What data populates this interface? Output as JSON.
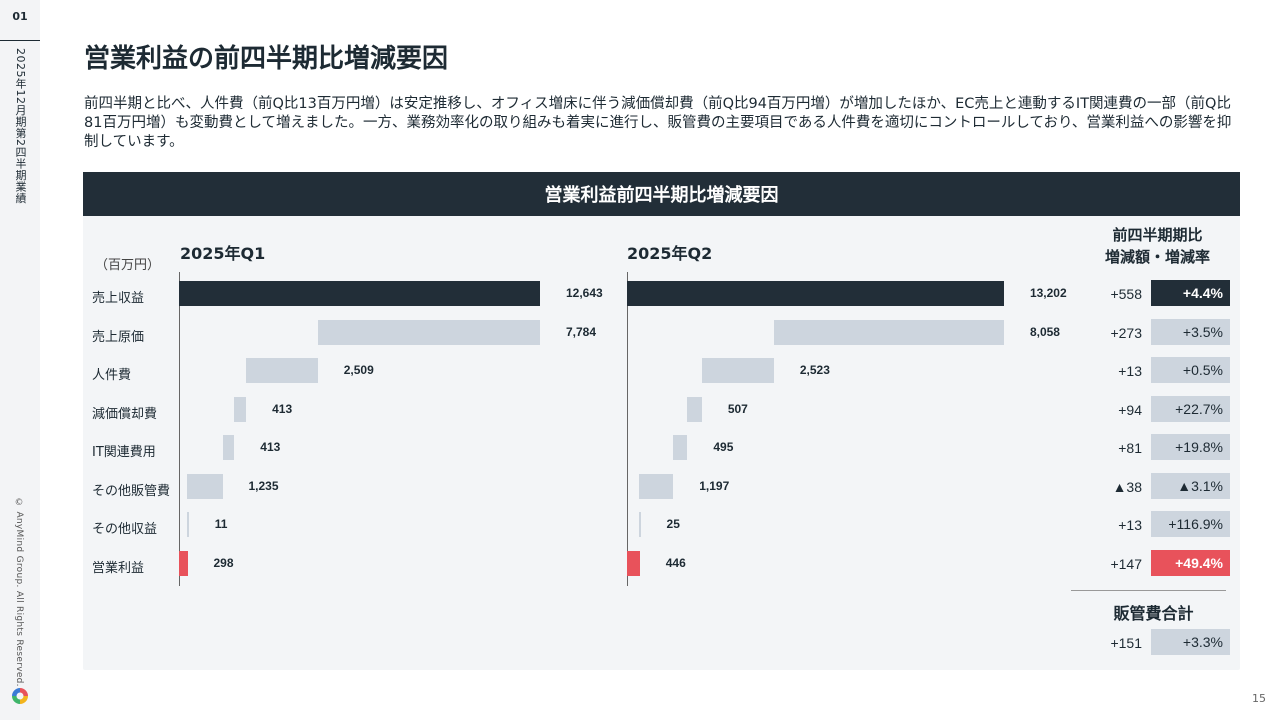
{
  "sidebar": {
    "slide_no": "01",
    "period": "2025年12月期第2四半期業績",
    "copyright": "© AnyMind Group. All Rights Reserved."
  },
  "page": {
    "title": "営業利益の前四半期比増減要因",
    "lead": "前四半期と比べ、人件費（前Q比13百万円増）は安定推移し、オフィス増床に伴う減価償却費（前Q比94百万円増）が増加したほか、EC売上と連動するIT関連費の一部（前Q比81百万円増）も変動費として増えました。一方、業務効率化の取り組みも着実に進行し、販管費の主要項目である人件費を適切にコントロールしており、営業利益への影響を抑制しています。",
    "page_number": "15"
  },
  "colors": {
    "dark": "#222e38",
    "light_bar": "#cdd5de",
    "red": "#e8525b"
  },
  "chart_data": {
    "type": "bar",
    "subtype": "waterfall",
    "title": "営業利益前四半期比増減要因",
    "unit": "（百万円）",
    "categories": [
      "売上収益",
      "売上原価",
      "人件費",
      "減価償却費",
      "IT関連費用",
      "その他販管費",
      "その他収益",
      "営業利益"
    ],
    "series": [
      {
        "name": "2025年Q1",
        "values": [
          12643,
          7784,
          2509,
          413,
          413,
          1235,
          11,
          298
        ]
      },
      {
        "name": "2025年Q2",
        "values": [
          13202,
          8058,
          2523,
          507,
          495,
          1197,
          25,
          446
        ]
      }
    ],
    "value_labels": {
      "q1": [
        "12,643",
        "7,784",
        "2,509",
        "413",
        "413",
        "1,235",
        "11",
        "298"
      ],
      "q2": [
        "13,202",
        "8,058",
        "2,523",
        "507",
        "495",
        "1,197",
        "25",
        "446"
      ]
    },
    "qoq": {
      "header_line1": "前四半期期比",
      "header_line2": "増減額・増減率",
      "amounts": [
        "+558",
        "+273",
        "+13",
        "+94",
        "+81",
        "▲38",
        "+13",
        "+147"
      ],
      "rates": [
        "+4.4%",
        "+3.5%",
        "+0.5%",
        "+22.7%",
        "+19.8%",
        "▲3.1%",
        "+116.9%",
        "+49.4%"
      ]
    },
    "sga_total": {
      "label": "販管費合計",
      "amount": "+151",
      "rate": "+3.3%"
    }
  }
}
